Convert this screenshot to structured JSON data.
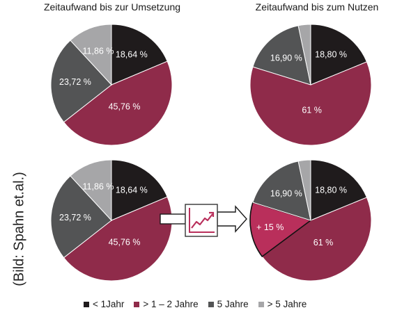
{
  "credit": "(Bild: Spahn et.al.)",
  "colors": {
    "lt1": "#1f1b1c",
    "y1_2": "#8f2b4a",
    "y5": "#535455",
    "gt5": "#a6a6a8",
    "highlight": "#b92f5b"
  },
  "legend": [
    {
      "label": "< 1Jahr",
      "color_key": "lt1"
    },
    {
      "label": "> 1 – 2 Jahre",
      "color_key": "y1_2"
    },
    {
      "label": "5 Jahre",
      "color_key": "y5"
    },
    {
      "label": "> 5 Jahre",
      "color_key": "gt5"
    }
  ],
  "chart_data": [
    {
      "type": "pie",
      "title": "Zeitaufwand bis zur Umsetzung",
      "slices": [
        {
          "name": "< 1Jahr",
          "value": 18.64,
          "label": "18,64 %",
          "color_key": "lt1"
        },
        {
          "name": "> 1 – 2 Jahre",
          "value": 45.76,
          "label": "45,76 %",
          "color_key": "y1_2"
        },
        {
          "name": "5 Jahre",
          "value": 23.72,
          "label": "23,72 %",
          "color_key": "y5"
        },
        {
          "name": "> 5 Jahre",
          "value": 11.86,
          "label": "11,86 %",
          "color_key": "gt5"
        }
      ]
    },
    {
      "type": "pie",
      "title": "Zeitaufwand bis zum Nutzen",
      "slices": [
        {
          "name": "< 1Jahr",
          "value": 18.8,
          "label": "18,80 %",
          "color_key": "lt1"
        },
        {
          "name": "> 1 – 2 Jahre",
          "value": 61.0,
          "label": "61 %",
          "color_key": "y1_2"
        },
        {
          "name": "5 Jahre",
          "value": 16.9,
          "label": "16,90 %",
          "color_key": "y5"
        },
        {
          "name": "> 5 Jahre",
          "value": 3.3,
          "label": "",
          "color_key": "gt5"
        }
      ]
    },
    {
      "type": "pie",
      "title": "",
      "slices": [
        {
          "name": "< 1Jahr",
          "value": 18.64,
          "label": "18,64 %",
          "color_key": "lt1"
        },
        {
          "name": "> 1 – 2 Jahre",
          "value": 45.76,
          "label": "45,76 %",
          "color_key": "y1_2"
        },
        {
          "name": "5 Jahre",
          "value": 23.72,
          "label": "23,72 %",
          "color_key": "y5"
        },
        {
          "name": "> 5 Jahre",
          "value": 11.86,
          "label": "11,86 %",
          "color_key": "gt5"
        }
      ]
    },
    {
      "type": "pie",
      "title": "",
      "slices": [
        {
          "name": "< 1Jahr",
          "value": 18.8,
          "label": "18,80 %",
          "color_key": "lt1"
        },
        {
          "name": "> 1 – 2 Jahre",
          "value": 46.0,
          "label": "61 %",
          "color_key": "y1_2"
        },
        {
          "name": "+ 15 %",
          "value": 15.0,
          "label": "+ 15 %",
          "color_key": "highlight",
          "highlight": true
        },
        {
          "name": "5 Jahre",
          "value": 16.9,
          "label": "16,90 %",
          "color_key": "y5"
        },
        {
          "name": "> 5 Jahre",
          "value": 3.3,
          "label": "",
          "color_key": "gt5"
        }
      ]
    }
  ]
}
